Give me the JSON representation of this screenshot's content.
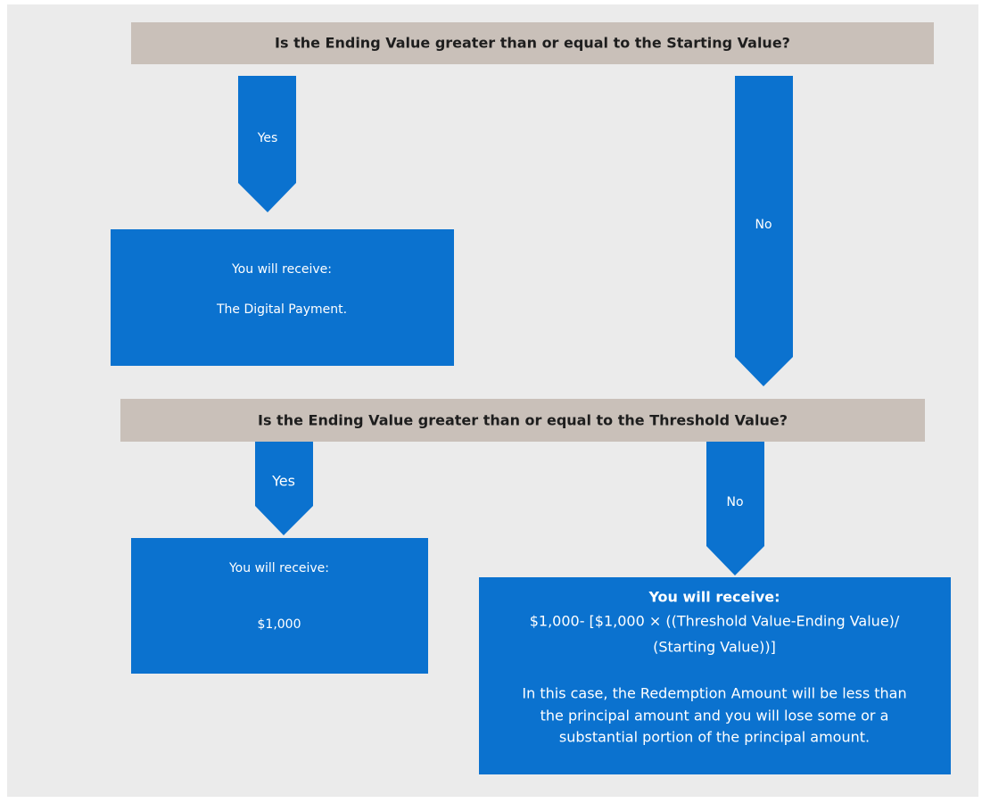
{
  "decisions": [
    {
      "question": "Is the Ending Value greater than or equal to the Starting Value?",
      "yes": {
        "label": "Yes",
        "outcome": [
          "You will receive:",
          "The Digital Payment."
        ]
      },
      "no": {
        "label": "No"
      }
    },
    {
      "question": "Is the Ending Value greater than or equal to the Threshold Value?",
      "yes": {
        "label": "Yes",
        "outcome": [
          "You will receive:",
          "$1,000"
        ]
      },
      "no": {
        "label": "No",
        "outcome": [
          "You will receive:",
          "$1,000- [$1,000 × ((Threshold Value-Ending Value)/",
          "(Starting Value))]",
          "In this case, the Redemption Amount will be less than",
          "the principal amount and you will lose some or a",
          "substantial portion of the principal amount."
        ]
      }
    }
  ]
}
